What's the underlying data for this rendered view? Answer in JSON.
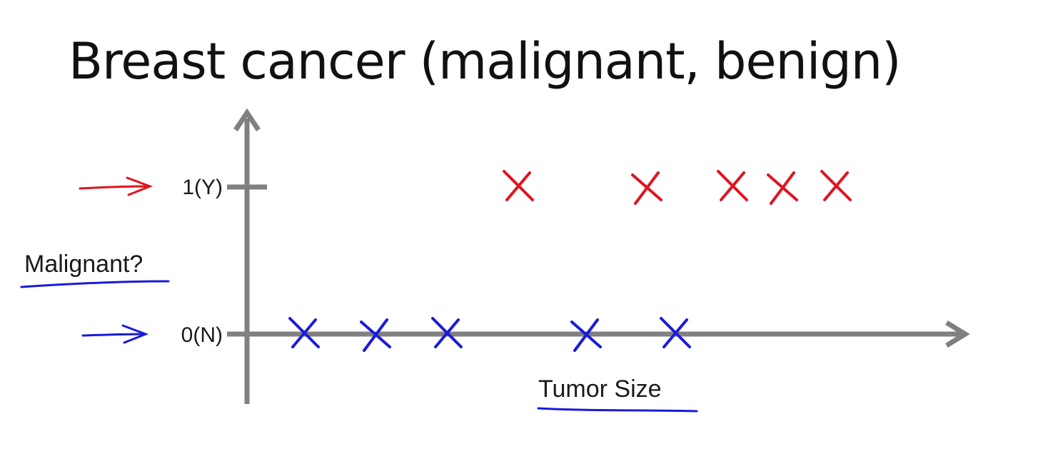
{
  "title": "Breast cancer (malignant, benign)",
  "chart_data": {
    "type": "scatter",
    "title": "Breast cancer (malignant, benign)",
    "xlabel": "Tumor Size",
    "ylabel": "Malignant?",
    "y_ticks": [
      "0(N)",
      "1(Y)"
    ],
    "y_tick_values": [
      0,
      1
    ],
    "xlim": [
      0,
      10
    ],
    "ylim": [
      -0.45,
      1.5
    ],
    "grid": false,
    "series": [
      {
        "name": "",
        "marker": "x",
        "color": "#1a1adb",
        "x": [
          0.8,
          1.8,
          2.8,
          4.75,
          6.0
        ],
        "y": [
          0,
          0,
          0,
          0,
          0
        ]
      },
      {
        "name": "",
        "marker": "x",
        "color": "#e0141e",
        "x": [
          3.8,
          5.6,
          6.8,
          7.5,
          8.25
        ],
        "y": [
          1,
          1,
          1,
          1,
          1
        ]
      }
    ],
    "annotations": [
      {
        "type": "arrow",
        "target_tick": "1(Y)",
        "color": "#e0141e"
      },
      {
        "type": "arrow",
        "target_tick": "0(N)",
        "color": "#1a1adb"
      },
      {
        "type": "underline",
        "target": "ylabel",
        "color": "#1a1adb"
      },
      {
        "type": "underline",
        "target": "xlabel",
        "color": "#1a1adb"
      }
    ]
  }
}
